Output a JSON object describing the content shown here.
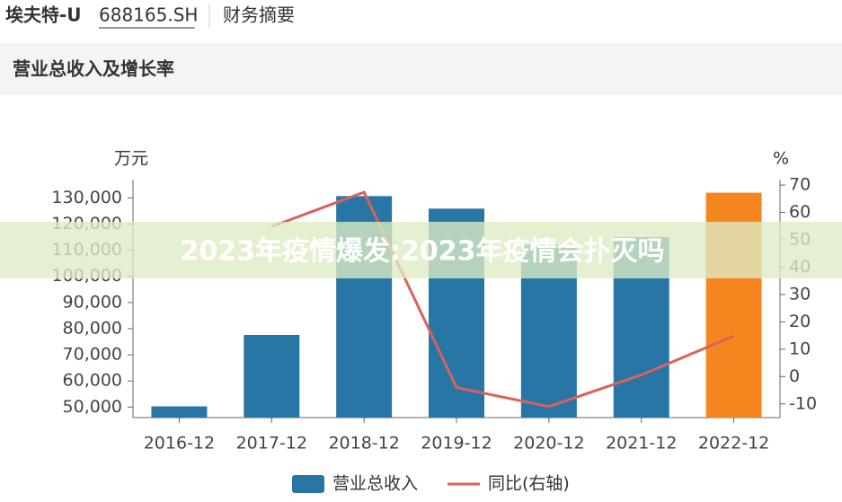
{
  "header": {
    "name": "埃夫特-U",
    "code": "688165.SH",
    "tab": "财务摘要"
  },
  "section_title": "营业总收入及增长率",
  "banner": "2023年疫情爆发:2023年疫情会扑灭吗",
  "chart_data": {
    "type": "bar",
    "categories": [
      "2016-12",
      "2017-12",
      "2018-12",
      "2019-12",
      "2020-12",
      "2021-12",
      "2022-12"
    ],
    "series": [
      {
        "name": "营业总收入",
        "type": "bar",
        "color": "#2776a6",
        "colors": [
          "#2776a6",
          "#2776a6",
          "#2776a6",
          "#2776a6",
          "#2776a6",
          "#2776a6",
          "#f5861f"
        ],
        "values": [
          50300,
          77600,
          130700,
          125900,
          112000,
          115000,
          132000
        ]
      },
      {
        "name": "同比(右轴)",
        "type": "line",
        "axis": "y2",
        "color": "#d9625a",
        "values": [
          null,
          54.8,
          67.4,
          -4.0,
          -11.0,
          0.6,
          14.8
        ]
      }
    ],
    "y_unit": "万元",
    "y2_unit": "%",
    "ylim": [
      46000,
      137000
    ],
    "yticks": [
      {
        "value": 50000,
        "label": "50,000"
      },
      {
        "value": 60000,
        "label": "60,000"
      },
      {
        "value": 70000,
        "label": "70,000"
      },
      {
        "value": 80000,
        "label": "80,000"
      },
      {
        "value": 90000,
        "label": "90,000"
      },
      {
        "value": 100000,
        "label": "100,000"
      },
      {
        "value": 110000,
        "label": "110,000"
      },
      {
        "value": 120000,
        "label": "120,000"
      },
      {
        "value": 130000,
        "label": "130,000"
      }
    ],
    "y2lim": [
      -15,
      72
    ],
    "y2ticks": [
      -10,
      0,
      10,
      20,
      30,
      40,
      50,
      60,
      70
    ]
  }
}
